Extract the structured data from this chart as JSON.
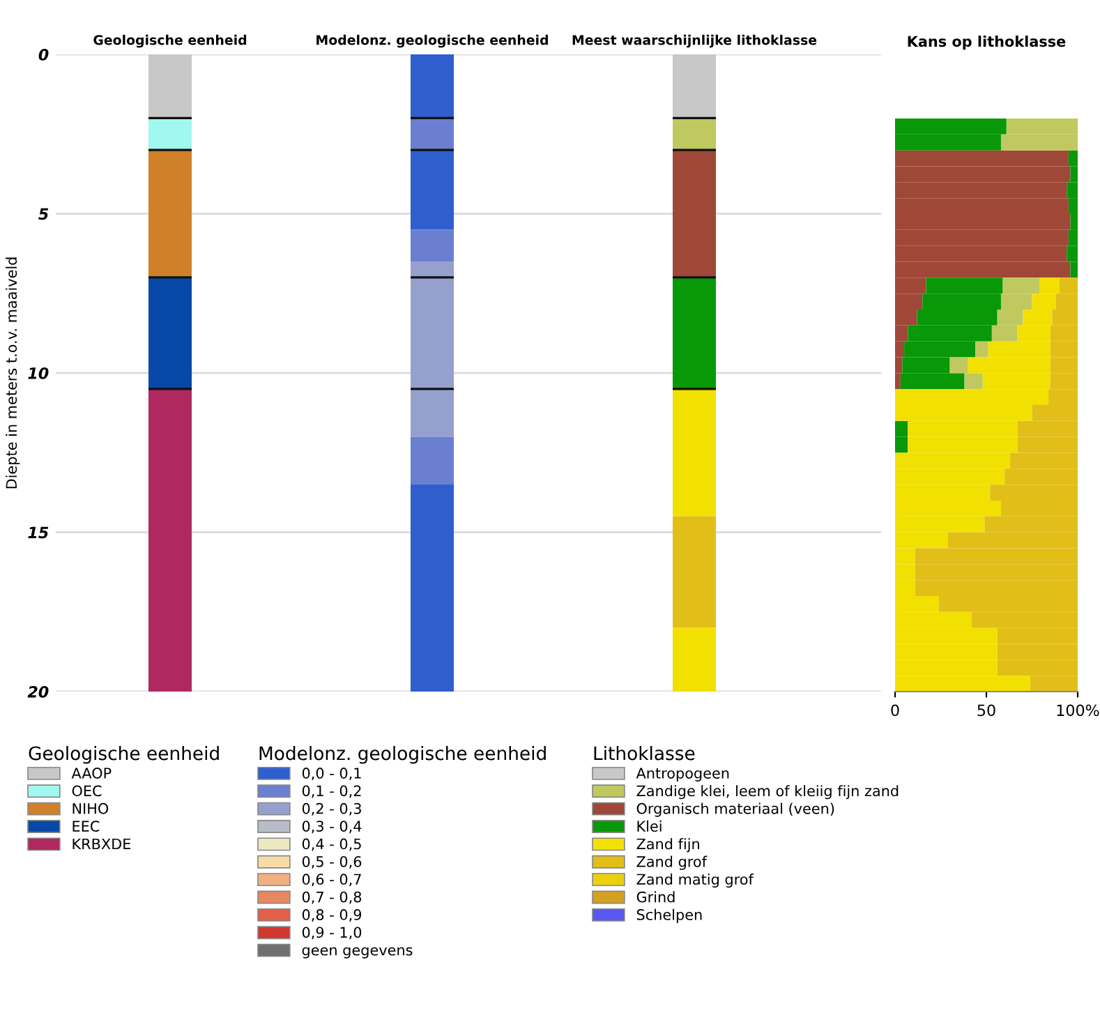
{
  "chart_data": [
    {
      "type": "bar",
      "ylabel": "Diepte in meters t.o.v. maaiveld",
      "stacked": true,
      "categories": [
        "Geologische eenheid",
        "Modelonz. geologische eenheid",
        "Meest waarschijnlijke lithoklasse"
      ],
      "ylim": [
        20,
        0
      ],
      "yticks": [
        0,
        5,
        10,
        15,
        20
      ],
      "grid": "y",
      "legend": "bottom",
      "legend_title": [
        "Geologische eenheid",
        "Modelonz. geologische eenheid",
        "Lithoklasse"
      ],
      "series": [
        {
          "name": "AAOP",
          "color": "#c8c8c8",
          "values": [
            2,
            null,
            null
          ]
        },
        {
          "name": "OEC",
          "color": "#a0f8f0",
          "values": [
            1,
            null,
            null
          ]
        },
        {
          "name": "NIHO",
          "color": "#d08028",
          "values": [
            4,
            null,
            null
          ]
        },
        {
          "name": "EEC",
          "color": "#0848a8",
          "values": [
            3.5,
            null,
            null
          ]
        },
        {
          "name": "KRBXDE",
          "color": "#b02860",
          "values": [
            9.5,
            null,
            null
          ]
        },
        {
          "name": "0,0 - 0,1",
          "color": "#2f5fce",
          "values": [
            null,
            2,
            null
          ]
        },
        {
          "name": "0,1 - 0,2",
          "color": "#6b7fd0",
          "values": [
            null,
            1,
            null
          ]
        },
        {
          "color": "#2f5fce",
          "values": [
            null,
            2.5,
            null
          ]
        },
        {
          "color": "#6b7fd0",
          "values": [
            null,
            1,
            null
          ]
        },
        {
          "name": "0,2 - 0,3",
          "color": "#96a0cf",
          "values": [
            null,
            5.5,
            null
          ]
        },
        {
          "color": "#6b7fd0",
          "values": [
            null,
            1.5,
            null
          ]
        },
        {
          "color": "#2f5fce",
          "values": [
            null,
            6.5,
            null
          ]
        },
        {
          "name": "0,3 - 0,4",
          "color": "#b8bcc8",
          "values": [
            null,
            null,
            null
          ]
        },
        {
          "name": "0,4 - 0,5",
          "color": "#ece9c0",
          "values": [
            null,
            null,
            null
          ]
        },
        {
          "name": "0,5 - 0,6",
          "color": "#f8dca8",
          "values": [
            null,
            null,
            null
          ]
        },
        {
          "name": "0,6 - 0,7",
          "color": "#f0b080",
          "values": [
            null,
            null,
            null
          ]
        },
        {
          "name": "0,7 - 0,8",
          "color": "#e88860",
          "values": [
            null,
            null,
            null
          ]
        },
        {
          "name": "0,8 - 0,9",
          "color": "#e06048",
          "values": [
            null,
            null,
            null
          ]
        },
        {
          "name": "0,9 - 1,0",
          "color": "#d03830",
          "values": [
            null,
            null,
            null
          ]
        },
        {
          "name": "geen gegevens",
          "color": "#707070",
          "values": [
            null,
            null,
            null
          ]
        },
        {
          "name": "Antropogeen",
          "color": "#c8c8c8",
          "values": [
            null,
            null,
            2
          ]
        },
        {
          "name": "Zandige klei, leem of kleiig fijn zand",
          "color": "#c0c860",
          "values": [
            null,
            null,
            1
          ]
        },
        {
          "name": "Organisch materiaal (veen)",
          "color": "#a04838",
          "values": [
            null,
            null,
            4
          ]
        },
        {
          "name": "Klei",
          "color": "#089808",
          "values": [
            null,
            null,
            3.5
          ]
        },
        {
          "name": "Zand fijn",
          "color": "#f2e000",
          "values": [
            null,
            null,
            4
          ]
        },
        {
          "name": "Zand grof",
          "color": "#e2be18",
          "values": [
            null,
            null,
            3.5
          ]
        },
        {
          "color": "#f2e000",
          "values": [
            null,
            null,
            2
          ]
        },
        {
          "name": "Zand matig grof",
          "color": "#ecd010",
          "values": [
            null,
            null,
            null
          ]
        },
        {
          "name": "Grind",
          "color": "#d4a020",
          "values": [
            null,
            null,
            null
          ]
        },
        {
          "name": "Schelpen",
          "color": "#5858f0",
          "values": [
            null,
            null,
            null
          ]
        }
      ]
    },
    {
      "type": "bar",
      "title": "Kans op lithoklasse",
      "orientation": "horizontal",
      "stacked": true,
      "categories": [
        null,
        null,
        null,
        null,
        null,
        null,
        null,
        null,
        null,
        null,
        null,
        null,
        null,
        null,
        null,
        null,
        null,
        null,
        null,
        null,
        null,
        null,
        null,
        null,
        null,
        null,
        null,
        null,
        null,
        null,
        null,
        null,
        null,
        null,
        null,
        null
      ],
      "xlim": [
        0,
        100
      ],
      "xticks": [
        0,
        50,
        {
          "value": 100,
          "label": "100%"
        }
      ],
      "tick_labels": "x",
      "series": [
        {
          "color": "#a04838",
          "values": [
            null,
            null,
            95,
            96,
            94,
            95,
            96,
            95,
            94,
            96,
            17,
            15,
            12,
            7,
            5,
            4,
            3,
            null,
            null,
            null,
            null,
            null,
            null,
            null,
            null,
            null,
            null,
            null,
            null,
            null,
            null,
            null,
            null,
            null,
            null,
            null
          ]
        },
        {
          "color": "#089808",
          "values": [
            61,
            58,
            5,
            4,
            6,
            5,
            4,
            5,
            6,
            4,
            42,
            43,
            44,
            46,
            39,
            26,
            35,
            null,
            null,
            7,
            7,
            null,
            null,
            null,
            null,
            null,
            null,
            null,
            null,
            null,
            null,
            null,
            null,
            null,
            null,
            null
          ]
        },
        {
          "color": "#c0c860",
          "values": [
            39,
            42,
            null,
            null,
            null,
            null,
            null,
            null,
            null,
            null,
            20,
            17,
            14,
            14,
            7,
            10,
            10,
            null,
            null,
            null,
            null,
            null,
            null,
            null,
            null,
            null,
            null,
            null,
            null,
            null,
            null,
            null,
            null,
            null,
            null,
            null
          ]
        },
        {
          "color": "#f2e000",
          "values": [
            null,
            null,
            null,
            null,
            null,
            null,
            null,
            null,
            null,
            null,
            11,
            13,
            16,
            18,
            34,
            45,
            37,
            84,
            75,
            60,
            60,
            63,
            60,
            52,
            58,
            49,
            29,
            11,
            11,
            11,
            24,
            42,
            56,
            56,
            56,
            74
          ]
        },
        {
          "color": "#e2be18",
          "values": [
            null,
            null,
            null,
            null,
            null,
            null,
            null,
            null,
            null,
            null,
            10,
            12,
            14,
            15,
            15,
            15,
            15,
            16,
            25,
            33,
            33,
            37,
            40,
            48,
            42,
            51,
            71,
            89,
            89,
            89,
            76,
            58,
            44,
            44,
            44,
            26
          ]
        }
      ]
    }
  ]
}
